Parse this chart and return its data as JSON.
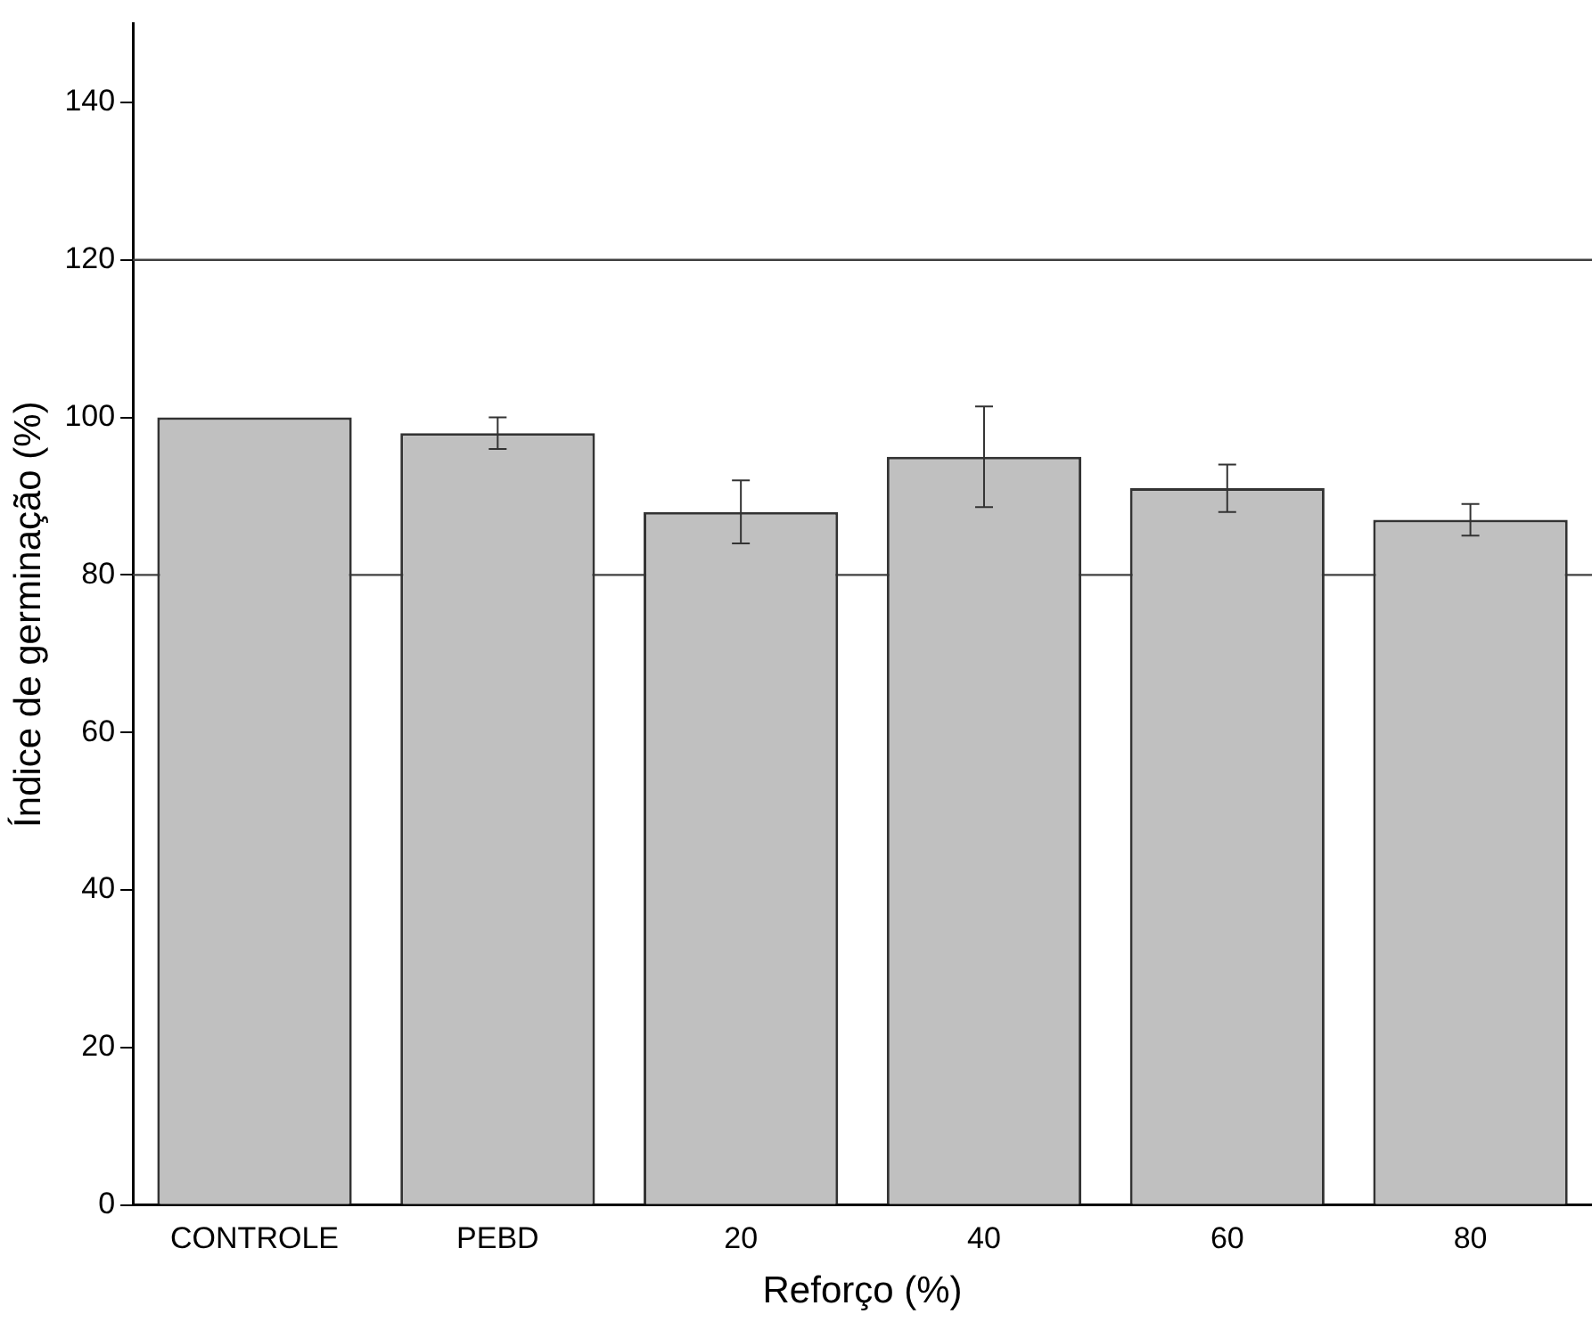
{
  "chart_data": {
    "type": "bar",
    "xlabel": "Reforço (%)",
    "ylabel": "Índice de germinação (%)",
    "categories": [
      "CONTROLE",
      "PEBD",
      "20",
      "40",
      "60",
      "80"
    ],
    "values": [
      100,
      98,
      88,
      95,
      91,
      87
    ],
    "errors": [
      null,
      2,
      4,
      6.4,
      3,
      2
    ],
    "color": "#c0c0c0",
    "ylim": [
      0,
      150
    ],
    "yticks": [
      0,
      20,
      40,
      60,
      80,
      100,
      120,
      140
    ],
    "grid": false,
    "legend": false,
    "ref_lines": [
      {
        "axis": "y",
        "value": 120,
        "color": "#404040"
      },
      {
        "axis": "y",
        "value": 80,
        "color": "#404040"
      }
    ]
  }
}
